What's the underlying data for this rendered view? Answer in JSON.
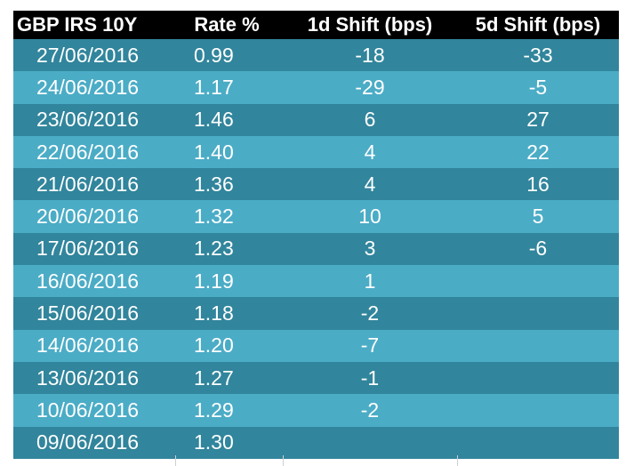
{
  "table": {
    "headers": [
      "GBP IRS 10Y",
      "Rate %",
      "1d Shift (bps)",
      "5d Shift (bps)"
    ],
    "rows": [
      [
        "27/06/2016",
        "0.99",
        "-18",
        "-33"
      ],
      [
        "24/06/2016",
        "1.17",
        "-29",
        "-5"
      ],
      [
        "23/06/2016",
        "1.46",
        "6",
        "27"
      ],
      [
        "22/06/2016",
        "1.40",
        "4",
        "22"
      ],
      [
        "21/06/2016",
        "1.36",
        "4",
        "16"
      ],
      [
        "20/06/2016",
        "1.32",
        "10",
        "5"
      ],
      [
        "17/06/2016",
        "1.23",
        "3",
        "-6"
      ],
      [
        "16/06/2016",
        "1.19",
        "1",
        ""
      ],
      [
        "15/06/2016",
        "1.18",
        "-2",
        ""
      ],
      [
        "14/06/2016",
        "1.20",
        "-7",
        ""
      ],
      [
        "13/06/2016",
        "1.27",
        "-1",
        ""
      ],
      [
        "10/06/2016",
        "1.29",
        "-2",
        ""
      ],
      [
        "09/06/2016",
        "1.30",
        "",
        ""
      ]
    ],
    "colors": {
      "header_bg": "#000000",
      "row_dark": "#31859c",
      "row_light": "#4bacc6",
      "text": "#ffffff"
    }
  }
}
